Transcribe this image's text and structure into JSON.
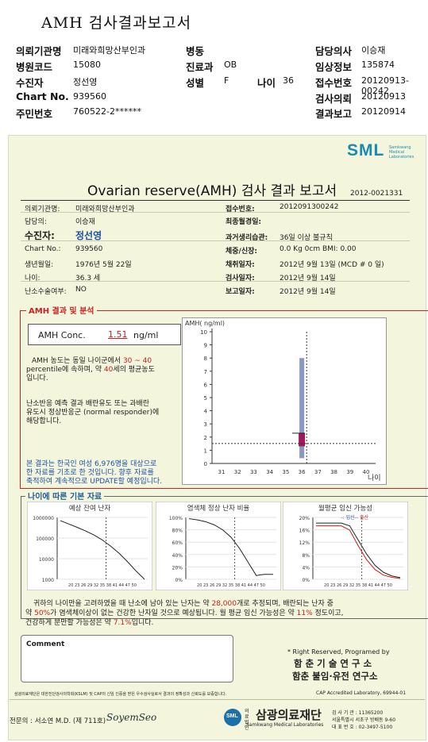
{
  "header": {
    "title": "AMH 검사결과보고서",
    "rows": [
      {
        "l1": "의뢰기관명",
        "v1": "미래와희망산부인과",
        "l2": "병동",
        "v2": "",
        "l3": "담당의사",
        "v3": "이승재"
      },
      {
        "l1": "병원코드",
        "v1": "15080",
        "l2": "진료과",
        "v2": "OB",
        "l3": "임상정보",
        "v3": "135874"
      },
      {
        "l1": "수진자",
        "v1": "정선영",
        "l2": "성별",
        "v2": "F",
        "l2b": "나이",
        "v2b": "36",
        "l3": "접수번호",
        "v3": "20120913-00242"
      },
      {
        "l1": "Chart No.",
        "v1": "939560",
        "l2": "",
        "v2": "",
        "l3": "검사의뢰",
        "v3": "20120913"
      },
      {
        "l1": "주민번호",
        "v1": "760522-2******",
        "l2": "",
        "v2": "",
        "l3": "결과보고",
        "v3": "20120914"
      }
    ]
  },
  "report": {
    "logo": "SML",
    "logo_sub": "Samkwang Medical Laboratories",
    "title": "Ovarian reserve(AMH) 검사 결과 보고서",
    "doc_no": "2012-0021331",
    "left": [
      {
        "label": "의뢰기관명:",
        "value": "미래와희망산부인과"
      },
      {
        "label": "담당의:",
        "value": "이승재"
      },
      {
        "label": "수진자:",
        "value": "정선영"
      },
      {
        "label": "Chart No.:",
        "value": "939560"
      },
      {
        "label": "생년월일:",
        "value": "1976년 5월 22일"
      },
      {
        "label": "나이:",
        "value": "36.3 세"
      },
      {
        "label": "난소수술여부:",
        "value": "NO"
      }
    ],
    "right": [
      {
        "label": "접수번호:",
        "value": "2012091300242"
      },
      {
        "label": "최종월경일:",
        "value": ""
      },
      {
        "label": "과거생리습관:",
        "value": "36일 이상 불규칙"
      },
      {
        "label": "체중/신장:",
        "value": "0.0 Kg      0cm    BMI:   0.00"
      },
      {
        "label": "채취일자:",
        "value": "2012년 9월 13일   (MCD #  0 일)"
      },
      {
        "label": "검사일자:",
        "value": "2012년 9월 14일"
      },
      {
        "label": "보고일자:",
        "value": "2012년 9월 14일"
      }
    ],
    "amh_section_title": "AMH 결과 및 분석",
    "conc_label": "AMH Conc.",
    "conc_value": "1.51",
    "conc_unit": "ng/ml",
    "analysis1_a": "AMH 농도는 동일 나이군에서",
    "analysis1_b": "30 ~ 40",
    "analysis1_c": "percentile에 속하며, 약",
    "analysis1_d": "40",
    "analysis1_e": "세의 평균농도",
    "analysis1_f": "입니다.",
    "analysis2": [
      "난소반응 예측 결과 배란유도 또는 과배란",
      "유도시 정상반응군 (normal responder)에",
      "해당합니다."
    ],
    "notice": [
      "본 결과는 한국인 여성 6,976명을 대상으로",
      "한 자료를 기초로 한 것입니다. 향후 자료를",
      "축적하여 계속적으로 UPDATE할 예정입니다."
    ],
    "graph_section_title": "나이에 따른 기본 자료",
    "summary_a": "귀하의 나이만을 고려하였을 때 난소에 남아 있는 난자는 약",
    "summary_b": "28,000",
    "summary_c": "개로 추정되며, 배란되는 난자 중",
    "summary_d": "약",
    "summary_e": "50%",
    "summary_f": "가 염색체이상이 없는 건강한 난자일 것으로 예상됩니다. 월 평균 임신 가능성은 약",
    "summary_g": "11%",
    "summary_h": "정도이고,",
    "summary_i": "건강하게 분만할 가능성은 약",
    "summary_j": "7.1%",
    "summary_k": "입니다.",
    "comment_label": "Comment",
    "rights": "* Right Reserved, Programed by",
    "institute1": "함 춘 기 술 연 구 소",
    "institute2": "함춘 불임·유전 연구소",
    "footnote_left": "삼광의료재단은 대한진단검사의학회(KSLM) 및 CAP의 신임 인증을 받은 우수검사실로서 결과의 정확성과 신뢰도를 보증합니다.",
    "footnote_right": "CAP Accredited Laboratory, 69944-01",
    "doctor": "전문의 : 서소연 M.D. (제 711호)",
    "signature": "SoyemSeo",
    "foundation_prefix": "의료법인",
    "foundation": "삼광의료재단",
    "foundation_en": "Samkwang Medical Laboratories",
    "contact1": "검 사 기 관 : 11365200",
    "contact2": "서울특별시 서초구 방배동 9-60",
    "contact3": "대 표 번 호 : 02-3497-5100"
  },
  "chart_data": [
    {
      "type": "bar",
      "ylabel": "AMH( ng/ml)",
      "xlabel": "나이",
      "x": [
        31,
        32,
        33,
        34,
        35,
        36,
        37,
        38,
        39,
        40
      ],
      "ylim": [
        0,
        10
      ],
      "yticks": [
        0,
        1,
        2,
        3,
        4,
        5,
        6,
        7,
        8,
        9,
        10
      ],
      "range_bar": {
        "age": 36,
        "low": 0.4,
        "high": 8.0
      },
      "patient": {
        "age": 36.3,
        "value": 1.51
      },
      "iqr_box": {
        "low": 1.3,
        "high": 2.3
      },
      "colors": {
        "range": "#8a97c8",
        "box": "#a0185c"
      }
    },
    {
      "type": "line",
      "title": "예상 잔여 난자",
      "x": [
        20,
        23,
        26,
        29,
        32,
        35,
        38,
        41,
        44,
        47,
        50
      ],
      "xticks": "20 23 26 29 32 35 38 41 44 47 50",
      "yticks": [
        "1000000",
        "100000",
        "10000",
        "1000"
      ],
      "yscale": "log",
      "ylim": [
        1000,
        1000000
      ],
      "values": [
        700000,
        480000,
        330000,
        220000,
        140000,
        80000,
        40000,
        18000,
        7000,
        2500,
        1000
      ],
      "patient_age": 36.3
    },
    {
      "type": "line",
      "title": "염색체 정상 난자 비율",
      "xticks": "20 23 26 29 32 35 38 41 44 47 50",
      "yticks": [
        "100%",
        "80%",
        "60%",
        "40%",
        "20%",
        "0%"
      ],
      "ylim": [
        0,
        100
      ],
      "x": [
        20,
        23,
        26,
        29,
        32,
        35,
        38,
        41,
        44,
        45,
        47,
        50
      ],
      "values": [
        98,
        96,
        93,
        88,
        80,
        68,
        50,
        28,
        6,
        7,
        8,
        8
      ],
      "patient_age": 36.3
    },
    {
      "type": "line",
      "title": "월평균 임신 가능성",
      "legend": "-: 임신-- 출산",
      "legend_a": "-: 임신--",
      "legend_b": "출산",
      "xticks": "20 23 26 29 32 35 38 41 44 47 50",
      "yticks": [
        "20%",
        "16%",
        "12%",
        "8%",
        "4%",
        "0%"
      ],
      "ylim": [
        0,
        22
      ],
      "x": [
        20,
        23,
        26,
        29,
        32,
        35,
        38,
        41,
        44,
        47,
        50
      ],
      "series": [
        {
          "values": [
            20,
            20,
            20,
            20,
            19,
            14,
            9,
            5,
            2.5,
            1.2,
            0.6
          ]
        },
        {
          "values": [
            19,
            19,
            19,
            19,
            17.5,
            12,
            7,
            3.5,
            1.5,
            0.7,
            0.3
          ]
        }
      ],
      "patient_age": 36.3
    }
  ]
}
